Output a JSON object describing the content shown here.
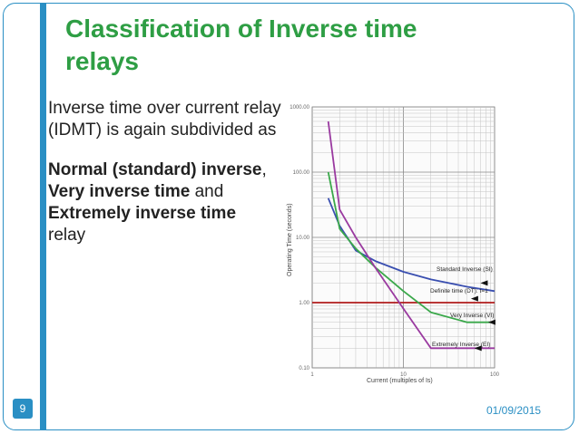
{
  "slide": {
    "title": "Classification of Inverse time relays",
    "intro": "Inverse time over current relay (IDMT)  is again subdivided as",
    "item1_bold": "Normal (standard) inverse",
    "item1_tail": ",",
    "item2_bold": "Very inverse time",
    "item2_tail": " and",
    "item3_bold": "Extremely inverse time",
    "item3_tail": "relay",
    "slide_number": "9",
    "date": "01/09/2015",
    "colors": {
      "title": "#2e9e44",
      "accent": "#2a8fc4"
    }
  },
  "chart_data": {
    "type": "line",
    "xscale": "log",
    "yscale": "log",
    "xlabel": "Current (multiples of Is)",
    "ylabel": "Operating Time (seconds)",
    "xlim": [
      1,
      100
    ],
    "ylim": [
      0.1,
      1000
    ],
    "x_ticks": [
      "1",
      "10",
      "100"
    ],
    "y_ticks": [
      "0.10",
      "1.00",
      "10.00",
      "100.00",
      "1000.00"
    ],
    "grid": true,
    "series": [
      {
        "name": "Standard Inverse (SI)",
        "color": "#3a4fb0",
        "x": [
          1.5,
          2,
          3,
          5,
          10,
          20,
          50,
          100
        ],
        "y": [
          40,
          15,
          6.3,
          4.3,
          2.97,
          2.27,
          1.75,
          1.5
        ]
      },
      {
        "name": "Definite time (DT): t=1",
        "color": "#b01c1c",
        "x": [
          1,
          100
        ],
        "y": [
          1,
          1
        ]
      },
      {
        "name": "Very Inverse (VI)",
        "color": "#3aa84a",
        "x": [
          1.5,
          2,
          3,
          5,
          10,
          20,
          50,
          100
        ],
        "y": [
          100,
          13.5,
          6.75,
          3.4,
          1.5,
          0.71,
          0.5,
          0.5
        ]
      },
      {
        "name": "Extremely Inverse (EI)",
        "color": "#9a3aa0",
        "x": [
          1.5,
          2,
          3,
          5,
          10,
          20,
          50,
          100
        ],
        "y": [
          600,
          26.7,
          10,
          3.33,
          0.81,
          0.2,
          0.2,
          0.2
        ]
      }
    ],
    "labels": [
      {
        "text": "Standard Inverse (SI)"
      },
      {
        "text": "Definite time (DT): t=1"
      },
      {
        "text": "Very Inverse (VI)"
      },
      {
        "text": "Extremely Inverse (EI)"
      }
    ]
  }
}
